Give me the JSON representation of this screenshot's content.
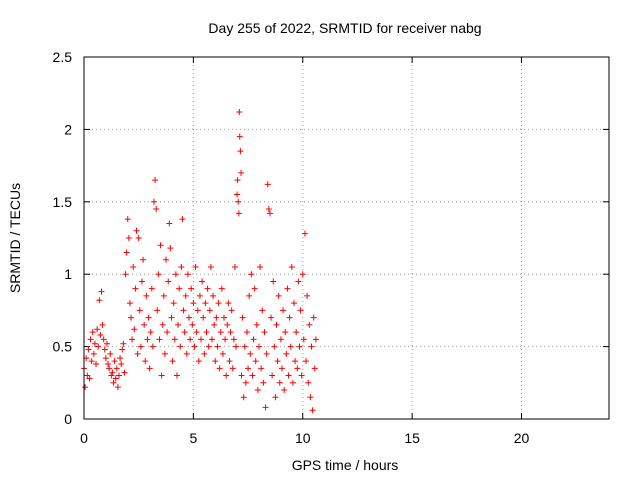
{
  "chart_data": {
    "type": "scatter",
    "title": "Day 255 of 2022, SRMTID for receiver nabg",
    "xlabel": "GPS time / hours",
    "ylabel": "SRMTID / TECUs",
    "xlim": [
      0,
      24
    ],
    "ylim": [
      0,
      2.5
    ],
    "x_ticks": [
      0,
      5,
      10,
      15,
      20
    ],
    "x_tick_labels": [
      "0",
      "5",
      "10",
      "15",
      "20"
    ],
    "y_ticks": [
      0,
      0.5,
      1,
      1.5,
      2,
      2.5
    ],
    "y_tick_labels": [
      "0",
      "0.5",
      "1",
      "1.5",
      "2",
      "2.5"
    ],
    "grid": true,
    "marker": "+",
    "series": [
      {
        "name": "SRMTID",
        "color": "#ff0000",
        "points": [
          [
            0.0,
            0.35
          ],
          [
            0.05,
            0.22
          ],
          [
            0.1,
            0.42
          ],
          [
            0.15,
            0.3
          ],
          [
            0.2,
            0.48
          ],
          [
            0.25,
            0.28
          ],
          [
            0.3,
            0.55
          ],
          [
            0.35,
            0.4
          ],
          [
            0.4,
            0.6
          ],
          [
            0.45,
            0.45
          ],
          [
            0.5,
            0.52
          ],
          [
            0.55,
            0.38
          ],
          [
            0.6,
            0.62
          ],
          [
            0.65,
            0.5
          ],
          [
            0.7,
            0.82
          ],
          [
            0.75,
            0.58
          ],
          [
            0.8,
            0.88
          ],
          [
            0.85,
            0.65
          ],
          [
            0.9,
            0.55
          ],
          [
            0.95,
            0.48
          ],
          [
            1.0,
            0.42
          ],
          [
            1.05,
            0.52
          ],
          [
            1.1,
            0.38
          ],
          [
            1.15,
            0.35
          ],
          [
            1.2,
            0.45
          ],
          [
            1.25,
            0.3
          ],
          [
            1.3,
            0.32
          ],
          [
            1.35,
            0.25
          ],
          [
            1.4,
            0.4
          ],
          [
            1.45,
            0.28
          ],
          [
            1.5,
            0.35
          ],
          [
            1.55,
            0.22
          ],
          [
            1.6,
            0.3
          ],
          [
            1.65,
            0.42
          ],
          [
            1.7,
            0.38
          ],
          [
            1.75,
            0.48
          ],
          [
            1.8,
            0.52
          ],
          [
            1.85,
            0.32
          ],
          [
            1.9,
            1.0
          ],
          [
            1.95,
            1.15
          ],
          [
            2.0,
            1.38
          ],
          [
            2.05,
            1.25
          ],
          [
            2.1,
            0.8
          ],
          [
            2.15,
            0.7
          ],
          [
            2.2,
            0.55
          ],
          [
            2.25,
            1.05
          ],
          [
            2.3,
            0.62
          ],
          [
            2.35,
            0.9
          ],
          [
            2.4,
            1.3
          ],
          [
            2.45,
            0.45
          ],
          [
            2.5,
            1.25
          ],
          [
            2.55,
            0.75
          ],
          [
            2.6,
            0.5
          ],
          [
            2.65,
            0.95
          ],
          [
            2.7,
            1.1
          ],
          [
            2.75,
            0.65
          ],
          [
            2.8,
            0.4
          ],
          [
            2.85,
            0.85
          ],
          [
            2.9,
            0.55
          ],
          [
            2.95,
            0.7
          ],
          [
            3.0,
            0.35
          ],
          [
            3.05,
            0.6
          ],
          [
            3.1,
            0.9
          ],
          [
            3.15,
            0.5
          ],
          [
            3.2,
            1.5
          ],
          [
            3.25,
            1.65
          ],
          [
            3.3,
            1.45
          ],
          [
            3.35,
            0.75
          ],
          [
            3.4,
            1.0
          ],
          [
            3.45,
            0.55
          ],
          [
            3.5,
            1.2
          ],
          [
            3.55,
            0.3
          ],
          [
            3.6,
            0.65
          ],
          [
            3.65,
            0.85
          ],
          [
            3.7,
            0.45
          ],
          [
            3.75,
            1.1
          ],
          [
            3.8,
            0.6
          ],
          [
            3.85,
            0.95
          ],
          [
            3.9,
            1.35
          ],
          [
            3.95,
            1.18
          ],
          [
            4.0,
            0.7
          ],
          [
            4.05,
            0.4
          ],
          [
            4.1,
            0.8
          ],
          [
            4.15,
            0.55
          ],
          [
            4.2,
            1.0
          ],
          [
            4.25,
            0.3
          ],
          [
            4.3,
            0.65
          ],
          [
            4.35,
            0.9
          ],
          [
            4.4,
            0.5
          ],
          [
            4.45,
            1.05
          ],
          [
            4.5,
            1.38
          ],
          [
            4.55,
            0.75
          ],
          [
            4.6,
            0.6
          ],
          [
            4.65,
            0.85
          ],
          [
            4.7,
            0.45
          ],
          [
            4.75,
            1.0
          ],
          [
            4.8,
            0.7
          ],
          [
            4.85,
            0.55
          ],
          [
            4.9,
            0.9
          ],
          [
            4.95,
            0.65
          ],
          [
            5.0,
            0.8
          ],
          [
            5.05,
            0.5
          ],
          [
            5.1,
            1.05
          ],
          [
            5.15,
            0.6
          ],
          [
            5.2,
            0.75
          ],
          [
            5.25,
            0.4
          ],
          [
            5.3,
            0.85
          ],
          [
            5.35,
            0.55
          ],
          [
            5.4,
            0.95
          ],
          [
            5.45,
            0.7
          ],
          [
            5.5,
            0.45
          ],
          [
            5.55,
            0.8
          ],
          [
            5.6,
            0.6
          ],
          [
            5.65,
            0.9
          ],
          [
            5.7,
            0.5
          ],
          [
            5.75,
            0.75
          ],
          [
            5.8,
            1.05
          ],
          [
            5.85,
            0.55
          ],
          [
            5.9,
            0.85
          ],
          [
            5.95,
            0.65
          ],
          [
            6.0,
            0.4
          ],
          [
            6.05,
            0.7
          ],
          [
            6.1,
            0.5
          ],
          [
            6.15,
            0.8
          ],
          [
            6.2,
            0.35
          ],
          [
            6.25,
            0.6
          ],
          [
            6.3,
            0.9
          ],
          [
            6.35,
            0.45
          ],
          [
            6.4,
            0.7
          ],
          [
            6.45,
            0.55
          ],
          [
            6.5,
            0.3
          ],
          [
            6.55,
            0.65
          ],
          [
            6.6,
            0.8
          ],
          [
            6.65,
            0.4
          ],
          [
            6.7,
            0.6
          ],
          [
            6.75,
            0.75
          ],
          [
            6.8,
            0.35
          ],
          [
            6.85,
            0.55
          ],
          [
            6.9,
            1.05
          ],
          [
            6.95,
            0.5
          ],
          [
            7.0,
            1.55
          ],
          [
            7.02,
            1.65
          ],
          [
            7.05,
            1.5
          ],
          [
            7.08,
            1.42
          ],
          [
            7.1,
            2.12
          ],
          [
            7.12,
            1.95
          ],
          [
            7.15,
            1.85
          ],
          [
            7.18,
            1.7
          ],
          [
            7.2,
            0.3
          ],
          [
            7.25,
            0.7
          ],
          [
            7.3,
            0.15
          ],
          [
            7.35,
            0.5
          ],
          [
            7.4,
            0.25
          ],
          [
            7.45,
            0.6
          ],
          [
            7.5,
            0.35
          ],
          [
            7.55,
            0.85
          ],
          [
            7.6,
            0.45
          ],
          [
            7.65,
            1.0
          ],
          [
            7.7,
            0.3
          ],
          [
            7.75,
            0.55
          ],
          [
            7.8,
            0.9
          ],
          [
            7.85,
            0.4
          ],
          [
            7.9,
            0.65
          ],
          [
            7.95,
            0.2
          ],
          [
            8.0,
            0.5
          ],
          [
            8.05,
            1.05
          ],
          [
            8.1,
            0.35
          ],
          [
            8.15,
            0.75
          ],
          [
            8.2,
            0.25
          ],
          [
            8.25,
            0.6
          ],
          [
            8.3,
            0.08
          ],
          [
            8.35,
            0.45
          ],
          [
            8.4,
            1.62
          ],
          [
            8.45,
            1.45
          ],
          [
            8.5,
            1.42
          ],
          [
            8.55,
            0.7
          ],
          [
            8.6,
            0.3
          ],
          [
            8.65,
            0.95
          ],
          [
            8.7,
            0.5
          ],
          [
            8.75,
            0.15
          ],
          [
            8.8,
            0.65
          ],
          [
            8.85,
            0.4
          ],
          [
            8.9,
            0.85
          ],
          [
            8.95,
            0.25
          ],
          [
            9.0,
            0.55
          ],
          [
            9.05,
            0.35
          ],
          [
            9.1,
            0.75
          ],
          [
            9.15,
            0.2
          ],
          [
            9.2,
            0.6
          ],
          [
            9.25,
            0.45
          ],
          [
            9.3,
            0.9
          ],
          [
            9.35,
            0.3
          ],
          [
            9.4,
            0.7
          ],
          [
            9.45,
            0.5
          ],
          [
            9.5,
            1.05
          ],
          [
            9.55,
            0.25
          ],
          [
            9.6,
            0.8
          ],
          [
            9.65,
            0.4
          ],
          [
            9.7,
            0.6
          ],
          [
            9.75,
            0.35
          ],
          [
            9.8,
            0.95
          ],
          [
            9.85,
            0.5
          ],
          [
            9.9,
            0.75
          ],
          [
            9.95,
            0.3
          ],
          [
            10.0,
            1.0
          ],
          [
            10.05,
            0.55
          ],
          [
            10.1,
            1.28
          ],
          [
            10.15,
            0.4
          ],
          [
            10.2,
            0.85
          ],
          [
            10.25,
            0.25
          ],
          [
            10.3,
            0.65
          ],
          [
            10.35,
            0.15
          ],
          [
            10.4,
            0.5
          ],
          [
            10.45,
            0.06
          ],
          [
            10.5,
            0.7
          ],
          [
            10.55,
            0.35
          ],
          [
            10.6,
            0.55
          ]
        ]
      }
    ]
  }
}
